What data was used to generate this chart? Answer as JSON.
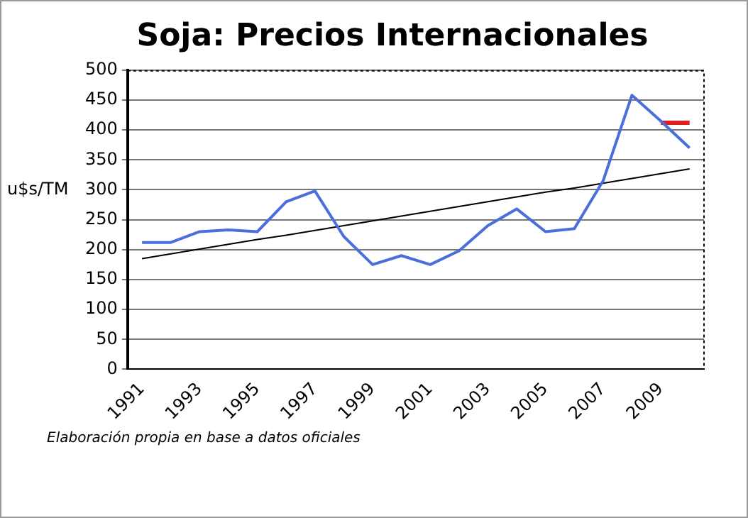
{
  "chart_data": {
    "type": "line",
    "title": "Soja: Precios Internacionales",
    "ylabel": "u$s/TM",
    "categories": [
      "1991",
      null,
      "1993",
      null,
      "1995",
      null,
      "1997",
      null,
      "1999",
      null,
      "2001",
      null,
      "2003",
      null,
      "2005",
      null,
      "2007",
      null,
      "2009",
      null
    ],
    "series": [
      {
        "color": "#4a6fdc",
        "values": [
          212,
          212,
          230,
          233,
          230,
          280,
          298,
          222,
          175,
          190,
          175,
          198,
          240,
          268,
          230,
          235,
          315,
          458,
          415,
          370
        ]
      },
      {
        "type": "line",
        "color": "#000000",
        "values": [
          185,
          193,
          201,
          209,
          217,
          224,
          232,
          240,
          248,
          256,
          264,
          272,
          280,
          288,
          296,
          303,
          311,
          319,
          327,
          335
        ]
      },
      {
        "type": "line",
        "color": "#e02020",
        "values": [
          null,
          null,
          null,
          null,
          null,
          null,
          null,
          null,
          null,
          null,
          null,
          null,
          null,
          null,
          null,
          null,
          null,
          null,
          412,
          412
        ]
      }
    ],
    "ylim": [
      0,
      500
    ],
    "yticks": [
      0,
      50,
      100,
      150,
      200,
      250,
      300,
      350,
      400,
      450,
      500
    ],
    "grid": "y",
    "legend": false,
    "marker": "none",
    "line_style": "solid",
    "annotations": [
      "Elaboración propia en base a datos oficiales"
    ]
  }
}
